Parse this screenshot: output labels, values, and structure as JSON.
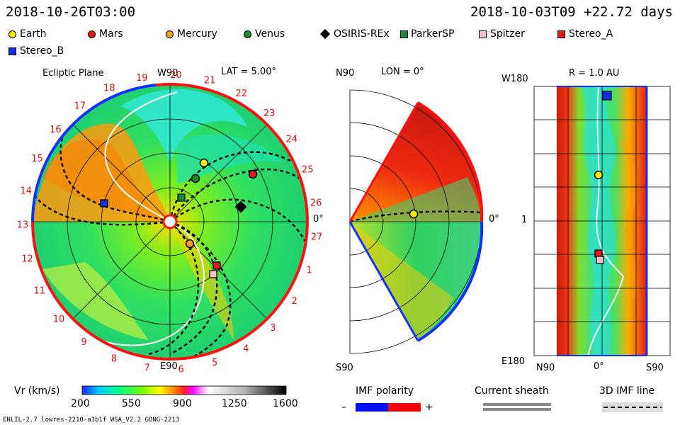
{
  "header": {
    "left_time": "2018-10-26T03:00",
    "right_time": "2018-10-03T09  +22.72 days"
  },
  "legend": [
    {
      "name": "Earth",
      "shape": "circle",
      "color": "#ffee00"
    },
    {
      "name": "Mars",
      "shape": "circle",
      "color": "#e41a1a"
    },
    {
      "name": "Mercury",
      "shape": "circle",
      "color": "#f5a020"
    },
    {
      "name": "Venus",
      "shape": "circle",
      "color": "#1a8a1a"
    },
    {
      "name": "OSIRIS-REx",
      "shape": "diamond",
      "color": "#000000"
    },
    {
      "name": "ParkerSP",
      "shape": "square",
      "color": "#1a8a3a"
    },
    {
      "name": "Spitzer",
      "shape": "square",
      "color": "#f9c0c8"
    },
    {
      "name": "Stereo_A",
      "shape": "square",
      "color": "#e41a1a"
    },
    {
      "name": "Stereo_B",
      "shape": "square",
      "color": "#1030e0"
    }
  ],
  "ecliptic": {
    "title": "Ecliptic Plane",
    "lat_label": "LAT = 5.00°",
    "top_label": "W90",
    "bottom_label": "E90",
    "right_label": "0°",
    "carrington_numbers": [
      "19",
      "20",
      "21",
      "22",
      "23",
      "24",
      "25",
      "26",
      "27",
      "1",
      "2",
      "3",
      "4",
      "5",
      "6",
      "7",
      "8",
      "9",
      "10",
      "11",
      "12",
      "13",
      "14",
      "15",
      "16",
      "17",
      "18"
    ]
  },
  "meridional": {
    "top_label": "N90",
    "lon_label": "LON = 0°",
    "bottom_label": "S90",
    "right_label": "0°"
  },
  "radial_map": {
    "title": "R = 1.0 AU",
    "top_left": "W180",
    "mid_left": "1",
    "bottom_left": "E180",
    "x_left": "N90",
    "x_mid": "0°",
    "x_right": "S90"
  },
  "colorbar": {
    "label": "Vr (km/s)",
    "ticks": [
      "200",
      "550",
      "900",
      "1250",
      "1600"
    ],
    "range": [
      200,
      1600
    ],
    "colors": [
      "#2020ff",
      "#00ccff",
      "#00ff88",
      "#80ff00",
      "#ffff00",
      "#ff9900",
      "#ff2020",
      "#ff00ff",
      "#ffffff",
      "#c8c8c8",
      "#000000"
    ]
  },
  "keys": {
    "imf_label": "IMF polarity",
    "minus": "–",
    "plus": "+",
    "current_sheath": "Current sheath",
    "imf_line": "3D IMF line"
  },
  "footer": {
    "model": "ENLIL-2.7 lowres-2210-a3b1f WSA_V2.2 GONG-2213"
  },
  "chart_data": [
    {
      "type": "heatmap",
      "title": "Ecliptic Plane",
      "variable": "Vr (km/s)",
      "lat": "5.00°",
      "bodies_present": [
        "Earth",
        "Mars",
        "Mercury",
        "Venus",
        "OSIRIS-REx",
        "ParkerSP",
        "Spitzer",
        "Stereo_A",
        "Stereo_B"
      ]
    },
    {
      "type": "heatmap",
      "title": "LON = 0°",
      "variable": "Vr (km/s)",
      "bodies_present": [
        "Earth"
      ]
    },
    {
      "type": "heatmap",
      "title": "R = 1.0 AU",
      "variable": "Vr (km/s)",
      "bodies_present": [
        "Earth",
        "Stereo_A",
        "Stereo_B",
        "Spitzer"
      ]
    }
  ]
}
